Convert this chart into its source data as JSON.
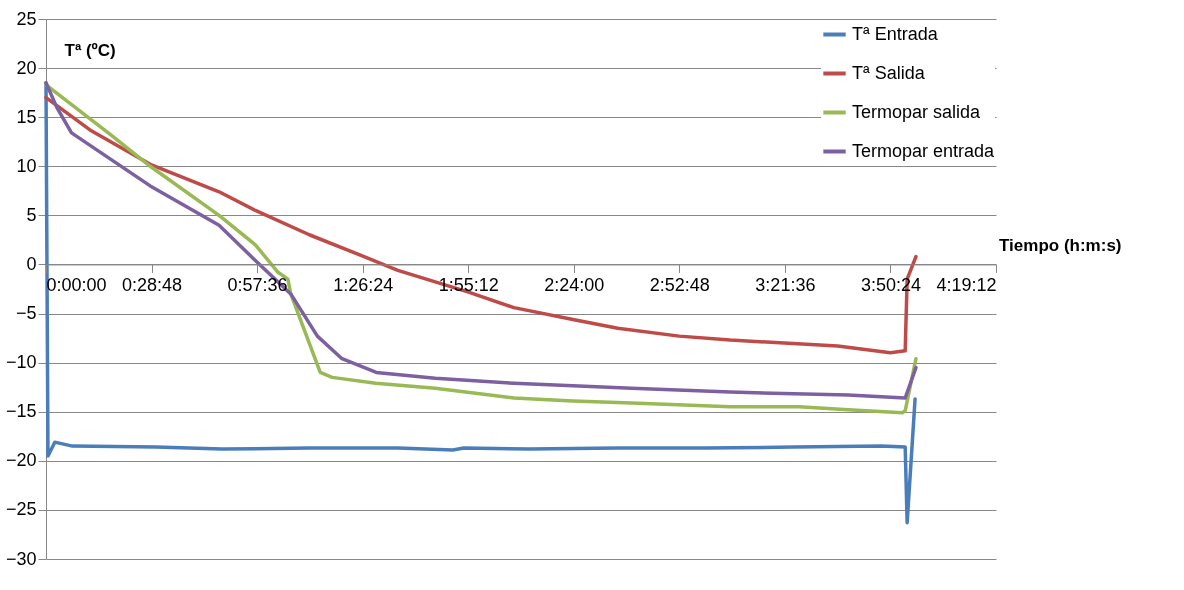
{
  "chart_data": {
    "type": "line",
    "xlabel": "Tiempo (h:m:s)",
    "ylabel": "Tª (ºC)",
    "xlim": [
      0,
      4.32
    ],
    "ylim": [
      -30,
      25
    ],
    "xticks": [
      {
        "value": 0,
        "label": "0:00:00"
      },
      {
        "value": 0.48,
        "label": "0:28:48"
      },
      {
        "value": 0.96,
        "label": "0:57:36"
      },
      {
        "value": 1.44,
        "label": "1:26:24"
      },
      {
        "value": 1.92,
        "label": "1:55:12"
      },
      {
        "value": 2.4,
        "label": "2:24:00"
      },
      {
        "value": 2.88,
        "label": "2:52:48"
      },
      {
        "value": 3.36,
        "label": "3:21:36"
      },
      {
        "value": 3.84,
        "label": "3:50:24"
      },
      {
        "value": 4.32,
        "label": "4:19:12"
      }
    ],
    "yticks": [
      -30,
      -25,
      -20,
      -15,
      -10,
      -5,
      0,
      5,
      10,
      15,
      20,
      25
    ],
    "grid": "y",
    "legend": "top right",
    "marker": "none",
    "line_style": "solid",
    "series": [
      {
        "name": "Tª Entrada",
        "color": "#4a7ebb",
        "x": [
          0,
          0.009,
          0.04,
          0.12,
          0.5,
          0.8,
          1.2,
          1.6,
          1.85,
          1.9,
          2.2,
          2.6,
          3.0,
          3.4,
          3.8,
          3.907,
          3.916,
          3.952
        ],
        "values": [
          18.5,
          -19.5,
          -18.1,
          -18.5,
          -18.6,
          -18.8,
          -18.7,
          -18.7,
          -18.9,
          -18.7,
          -18.8,
          -18.7,
          -18.7,
          -18.6,
          -18.5,
          -18.6,
          -26.3,
          -13.7
        ]
      },
      {
        "name": "Tª Salida",
        "color": "#be4b48",
        "x": [
          0,
          0.2,
          0.474,
          0.787,
          0.952,
          1.2,
          1.435,
          1.6,
          1.918,
          2.128,
          2.396,
          2.6,
          2.879,
          3.111,
          3.357,
          3.6,
          3.84,
          3.907,
          3.916,
          3.956
        ],
        "values": [
          17.0,
          13.7,
          10.2,
          7.4,
          5.5,
          3.0,
          0.9,
          -0.6,
          -2.8,
          -4.4,
          -5.6,
          -6.5,
          -7.3,
          -7.7,
          -8.0,
          -8.3,
          -9.0,
          -8.8,
          -1.5,
          0.8
        ]
      },
      {
        "name": "Termopar salida",
        "color": "#98b954",
        "x": [
          0,
          0.295,
          0.474,
          0.787,
          0.952,
          1.055,
          1.1,
          1.113,
          1.247,
          1.301,
          1.5,
          1.77,
          2.128,
          2.396,
          2.664,
          3.111,
          3.424,
          3.648,
          3.894,
          3.907,
          3.956
        ],
        "values": [
          18.3,
          13.2,
          10.0,
          5.0,
          2.0,
          -0.8,
          -1.5,
          -3.0,
          -11.0,
          -11.5,
          -12.1,
          -12.6,
          -13.6,
          -13.9,
          -14.1,
          -14.5,
          -14.5,
          -14.8,
          -15.1,
          -14.9,
          -9.6
        ]
      },
      {
        "name": "Termopar entrada",
        "color": "#7d60a0",
        "x": [
          0,
          0.049,
          0.116,
          0.474,
          0.787,
          0.952,
          1.113,
          1.234,
          1.346,
          1.502,
          1.77,
          2.128,
          2.664,
          3.111,
          3.648,
          3.907,
          3.956
        ],
        "values": [
          18.5,
          16.0,
          13.4,
          8.0,
          4.0,
          0.4,
          -3.0,
          -7.3,
          -9.6,
          -11.0,
          -11.6,
          -12.1,
          -12.6,
          -13.0,
          -13.3,
          -13.6,
          -10.5
        ]
      }
    ]
  }
}
